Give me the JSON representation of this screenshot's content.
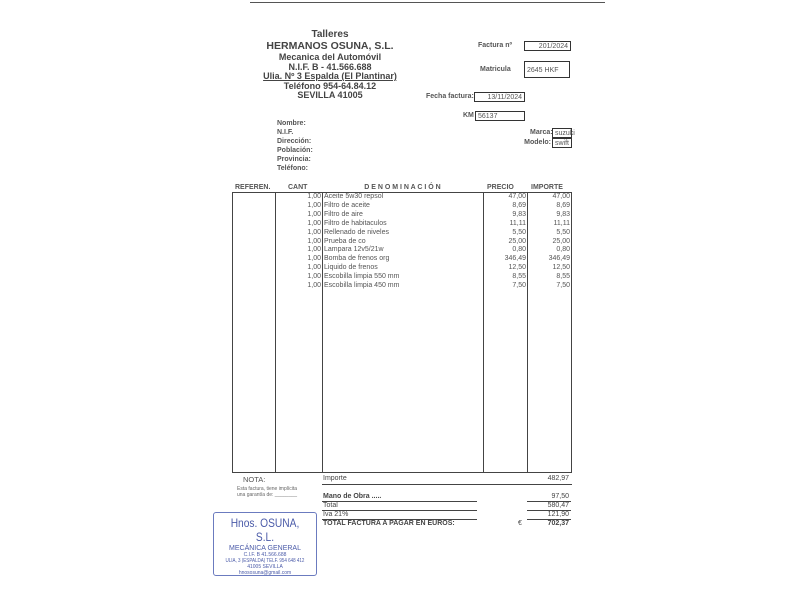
{
  "company": {
    "line1": "Talleres",
    "name": "HERMANOS OSUNA, S.L.",
    "activity": "Mecanica del Automóvil",
    "nif": "N.I.F. B - 41.566.688",
    "address": "Ulia. Nº 3 Espalda (El Plantinar)",
    "phone": "Teléfono 954-64.84.12",
    "city": "SEVILLA  41005"
  },
  "invoice": {
    "number_label": "Factura nº",
    "number": "201/2024",
    "plate_label": "Matricula",
    "plate": "2645 HKF",
    "date_label": "Fecha factura:",
    "date": "13/11/2024",
    "km_label": "KM",
    "km": "56137",
    "brand_label": "Marca:",
    "brand": "suzuki",
    "model_label": "Modelo:",
    "model": "swift"
  },
  "customer": {
    "labels": [
      "Nombre:",
      "N.I.F.",
      "Dirección:",
      "Población:",
      "Provincia:",
      "Teléfono:"
    ]
  },
  "table": {
    "headers": [
      "REFEREN.",
      "CANT",
      "D E N O M I N A C I Ó N",
      "PRECIO",
      "IMPORTE"
    ],
    "rows": [
      [
        "1,00",
        "Aceite 5w30 repsol",
        "47,00",
        "47,00"
      ],
      [
        "1,00",
        "Filtro de aceite",
        "8,69",
        "8,69"
      ],
      [
        "1,00",
        "Filtro de aire",
        "9,83",
        "9,83"
      ],
      [
        "1,00",
        "Filtro de habitaculos",
        "11,11",
        "11,11"
      ],
      [
        "1,00",
        "Rellenado de niveles",
        "5,50",
        "5,50"
      ],
      [
        "1,00",
        "Prueba de co",
        "25,00",
        "25,00"
      ],
      [
        "1,00",
        "Lampara 12v5/21w",
        "0,80",
        "0,80"
      ],
      [
        "1,00",
        "Bomba de frenos org",
        "346,49",
        "346,49"
      ],
      [
        "1,00",
        "Liquido de frenos",
        "12,50",
        "12,50"
      ],
      [
        "1,00",
        "Escobilla limpia  550 mm",
        "8,55",
        "8,55"
      ],
      [
        "1,00",
        "Escobilla limpia  450 mm",
        "7,50",
        "7,50"
      ]
    ]
  },
  "totals": {
    "nota_label": "NOTA:",
    "nota_text1": "Esta factura, tiene implícita",
    "nota_text2": "una garantía de: ________",
    "importe_label": "Importe",
    "importe": "482,97",
    "labor_label": "Mano de Obra .....",
    "labor": "97,50",
    "total_label": "Total",
    "total": "580,47",
    "iva_label": "Iva 21%",
    "iva": "121,90",
    "grand_label": "TOTAL FACTURA A PAGAR EN EUROS:",
    "currency": "€",
    "grand": "702,37"
  },
  "stamp": {
    "name": "Hnos. OSUNA, S.L.",
    "line1": "MECÁNICA GENERAL",
    "line2": "C.I.F. B 41.566.688",
    "line3": "ULIA, 3 (ESPALDA) TELF. 954 648 412",
    "line4": "41005 SEVILLA",
    "line5": "hnososuna@gmail.com"
  },
  "colors": {
    "stamp": "#4a5aa8"
  }
}
